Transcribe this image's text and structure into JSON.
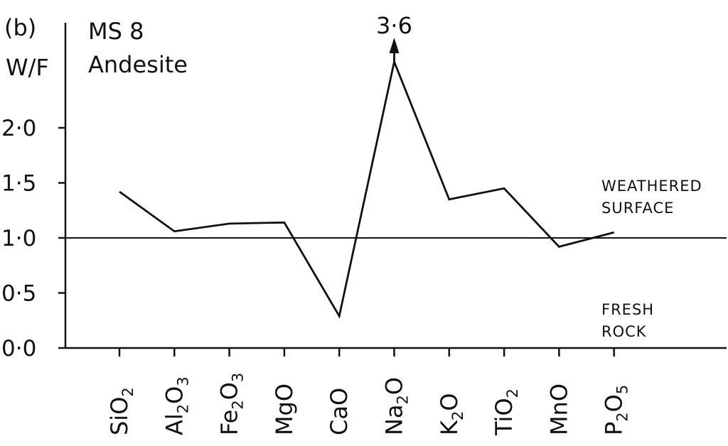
{
  "chart_data": {
    "type": "line",
    "panel_label": "(b)",
    "title": "MS 8",
    "subtitle": "Andesite",
    "ylabel": "W/F",
    "ylim": [
      0,
      2.0
    ],
    "reference_line": 1.0,
    "y_ticks": [
      "2·0",
      "1·5",
      "1·0",
      "0·5",
      "0·0"
    ],
    "categories": [
      {
        "base": "SiO",
        "sub": "2",
        "tail": ""
      },
      {
        "base": "Al",
        "sub": "2",
        "tail": "O",
        "sub2": "3"
      },
      {
        "base": "Fe",
        "sub": "2",
        "tail": "O",
        "sub2": "3"
      },
      {
        "base": "MgO",
        "sub": "",
        "tail": ""
      },
      {
        "base": "CaO",
        "sub": "",
        "tail": ""
      },
      {
        "base": "Na",
        "sub": "2",
        "tail": "O"
      },
      {
        "base": "K",
        "sub": "2",
        "tail": "O"
      },
      {
        "base": "TiO",
        "sub": "2",
        "tail": ""
      },
      {
        "base": "MnO",
        "sub": "",
        "tail": ""
      },
      {
        "base": "P",
        "sub": "2",
        "tail": "O",
        "sub2": "5"
      }
    ],
    "values": [
      1.42,
      1.06,
      1.13,
      1.14,
      0.29,
      3.6,
      1.35,
      1.45,
      0.92,
      1.05
    ],
    "off_scale_label": "3·6",
    "annotations": {
      "above": [
        "WEATHERED",
        "SURFACE"
      ],
      "below": [
        "FRESH",
        "ROCK"
      ]
    }
  }
}
